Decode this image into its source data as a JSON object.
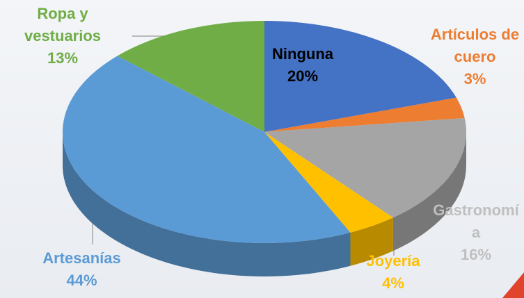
{
  "chart_data": {
    "type": "pie3d",
    "categories": [
      "Ninguna",
      "Artículos de cuero",
      "Gastronomía",
      "Joyería",
      "Artesanías",
      "Ropa y vestuarios"
    ],
    "values": [
      20,
      3,
      16,
      4,
      44,
      13
    ],
    "value_labels": [
      "20%",
      "3%",
      "16%",
      "4%",
      "44%",
      "13%"
    ],
    "colors": [
      "#4472c4",
      "#ed7d31",
      "#a5a5a5",
      "#ffc000",
      "#5b9bd5",
      "#70ad47"
    ]
  }
}
